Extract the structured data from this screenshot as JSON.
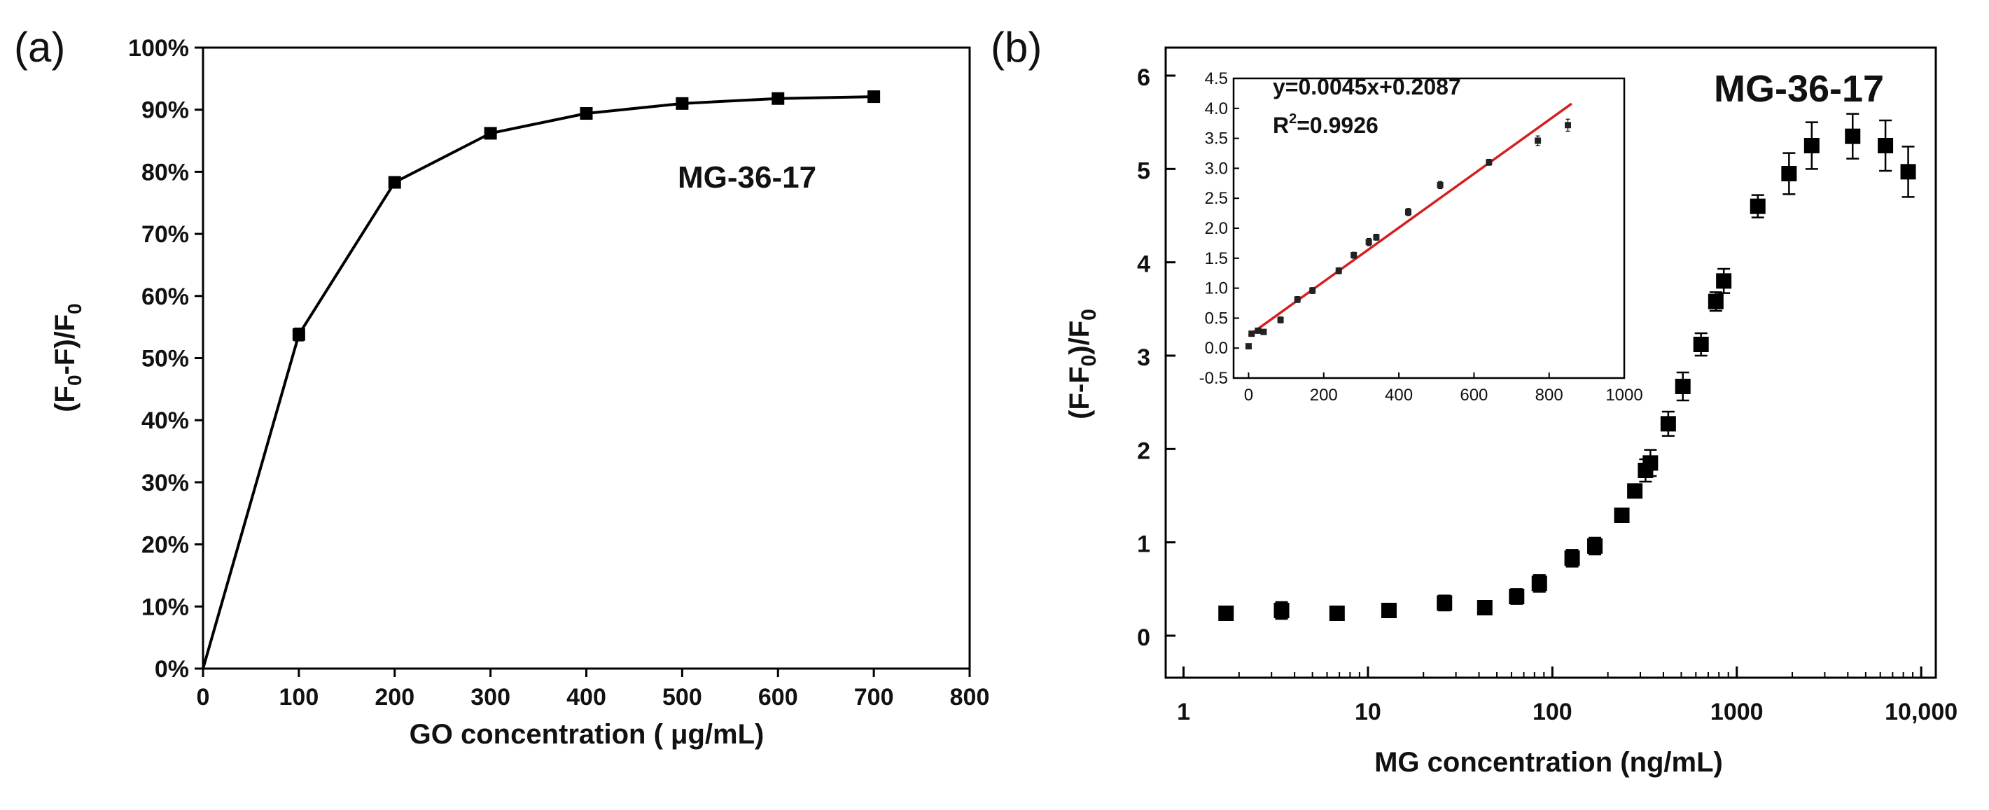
{
  "chart_data": [
    {
      "panel": "(a)",
      "type": "line",
      "xlabel": "GO concentration ( μg/mL)",
      "ylabel_main": "(F",
      "ylabel_sub1": "0",
      "ylabel_mid": "-F)/F",
      "ylabel_sub2": "0",
      "xlim": [
        0,
        800
      ],
      "ylim": [
        0,
        100
      ],
      "xticks": [
        "0",
        "100",
        "200",
        "300",
        "400",
        "500",
        "600",
        "700",
        "800"
      ],
      "yticks": [
        "0%",
        "10%",
        "20%",
        "30%",
        "40%",
        "50%",
        "60%",
        "70%",
        "80%",
        "90%",
        "100%"
      ],
      "annotation": "MG-36-17",
      "series": [
        {
          "name": "MG-36-17",
          "x": [
            0,
            100,
            200,
            300,
            400,
            500,
            600,
            700
          ],
          "y": [
            0,
            53.8,
            78.3,
            86.2,
            89.4,
            91.0,
            91.8,
            92.1
          ],
          "err": [
            0,
            1.0,
            0.9,
            0.4,
            0.5,
            0.4,
            0.3,
            0.3
          ]
        }
      ]
    },
    {
      "panel": "(b)",
      "type": "scatter",
      "xscale": "log",
      "xlabel": "MG concentration (ng/mL)",
      "ylabel_main": "(F-F",
      "ylabel_sub": "0",
      "ylabel_end": ")/F",
      "ylabel_sub2": "0",
      "xlim": [
        0.8,
        12000
      ],
      "ylim": [
        -0.45,
        6.3
      ],
      "xticks": [
        "1",
        "10",
        "100",
        "1000",
        "10,000"
      ],
      "xtick_values": [
        1,
        10,
        100,
        1000,
        10000
      ],
      "yticks": [
        "0",
        "1",
        "2",
        "3",
        "4",
        "5",
        "6"
      ],
      "annotation": "MG-36-17",
      "series": [
        {
          "name": "MG-36-17",
          "x": [
            1.7,
            3.4,
            6.8,
            13,
            26,
            43,
            64,
            85,
            128,
            170,
            238,
            280,
            320,
            340,
            425,
            510,
            640,
            770,
            850,
            1300,
            1920,
            2550,
            4250,
            6400,
            8500
          ],
          "y": [
            0.24,
            0.27,
            0.24,
            0.27,
            0.35,
            0.3,
            0.42,
            0.56,
            0.83,
            0.96,
            1.29,
            1.55,
            1.77,
            1.85,
            2.27,
            2.67,
            3.12,
            3.58,
            3.8,
            4.6,
            4.95,
            5.25,
            5.35,
            5.25,
            4.97
          ],
          "err": [
            0.05,
            0.09,
            0.05,
            0.04,
            0.08,
            0.07,
            0.08,
            0.09,
            0.09,
            0.09,
            0.07,
            0.07,
            0.12,
            0.14,
            0.13,
            0.15,
            0.12,
            0.1,
            0.13,
            0.12,
            0.22,
            0.25,
            0.24,
            0.27,
            0.27
          ]
        }
      ],
      "inset": {
        "type": "scatter",
        "xlim": [
          -40,
          1000
        ],
        "ylim": [
          -0.5,
          4.5
        ],
        "xticks": [
          "0",
          "200",
          "400",
          "600",
          "800",
          "1000"
        ],
        "yticks": [
          "-0.5",
          "0.0",
          "0.5",
          "1.0",
          "1.5",
          "2.0",
          "2.5",
          "3.0",
          "3.5",
          "4.0",
          "4.5"
        ],
        "equation": "y=0.0045x+0.2087",
        "r2_prefix": "R",
        "r2_sup": "2",
        "r2_value": "=0.9926",
        "fit": {
          "slope": 0.0045,
          "intercept": 0.2087,
          "x_range": [
            0,
            860
          ],
          "color": "#d42020"
        },
        "x": [
          0,
          8,
          25,
          40,
          85,
          130,
          170,
          240,
          280,
          320,
          340,
          425,
          510,
          640,
          770,
          850
        ],
        "y": [
          0.03,
          0.24,
          0.29,
          0.27,
          0.47,
          0.81,
          0.96,
          1.29,
          1.55,
          1.77,
          1.85,
          2.27,
          2.72,
          3.1,
          3.46,
          3.72
        ],
        "err": [
          0.03,
          0.04,
          0.04,
          0.04,
          0.05,
          0.05,
          0.05,
          0.05,
          0.05,
          0.06,
          0.05,
          0.06,
          0.06,
          0.05,
          0.08,
          0.1
        ]
      }
    }
  ]
}
